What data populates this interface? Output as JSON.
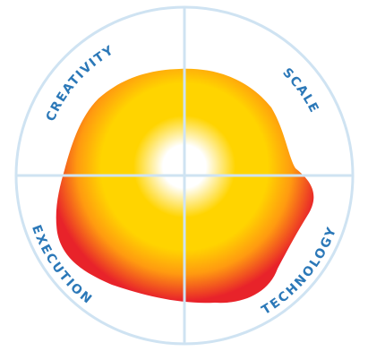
{
  "diagram": {
    "quadrant_labels": {
      "top_left": "CREATIVITY",
      "top_right": "SCALE",
      "bottom_left": "EXECUTION",
      "bottom_right": "TECHNOLOGY"
    },
    "colors": {
      "ring_stroke": "#cfe3f2",
      "label_text": "#2b78b8",
      "gradient_center": "#ffffff",
      "gradient_yellow": "#ffd400",
      "gradient_orange": "#ff9a10",
      "gradient_edge": "#e8232a"
    }
  }
}
